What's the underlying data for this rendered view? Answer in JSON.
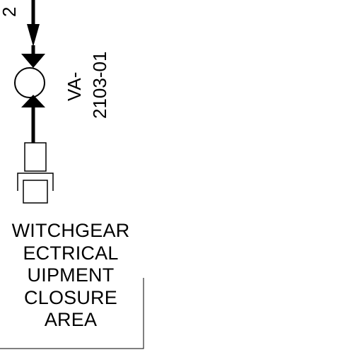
{
  "diagram": {
    "line_id_fragment": "2",
    "valve": {
      "tag_line1": "VA-",
      "tag_line2": "2103-01"
    },
    "area_label": {
      "lines": [
        "WITCHGEAR",
        "ECTRICAL",
        "UIPMENT",
        "CLOSURE",
        "AREA"
      ]
    }
  },
  "colors": {
    "line": "#000000",
    "background": "#ffffff"
  }
}
